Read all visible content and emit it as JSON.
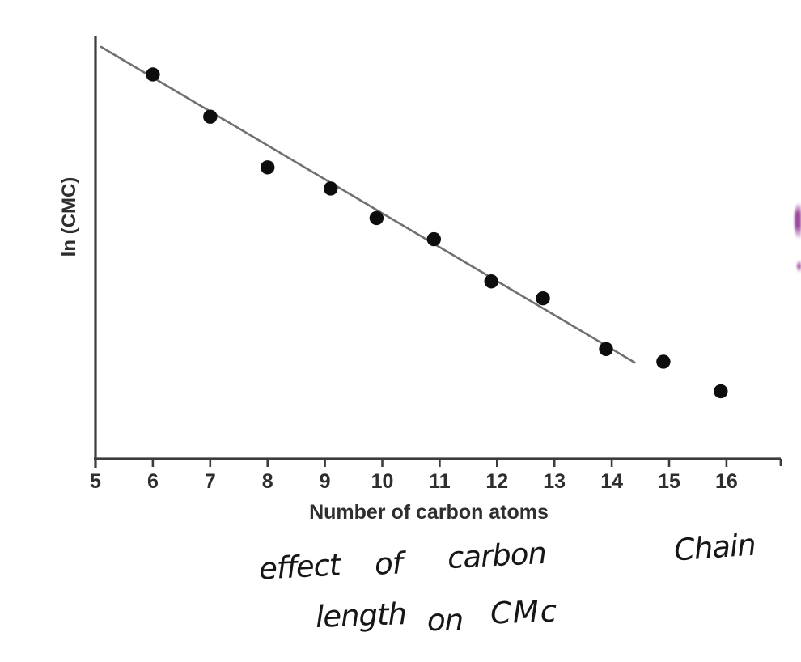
{
  "page": {
    "background": "#ffffff"
  },
  "chart_data": {
    "type": "scatter",
    "title": "",
    "xlabel": "Number of carbon atoms",
    "ylabel": "ln (CMC)",
    "x_tick_labels": [
      5,
      6,
      7,
      8,
      9,
      10,
      11,
      12,
      13,
      14,
      15,
      16
    ],
    "xlim": [
      5,
      16.95
    ],
    "ylim": [
      0,
      10
    ],
    "y_ticks_shown": false,
    "grid": false,
    "legend": false,
    "points": [
      {
        "x": 6.0,
        "y": 9.1
      },
      {
        "x": 7.0,
        "y": 8.1
      },
      {
        "x": 8.0,
        "y": 6.9
      },
      {
        "x": 9.1,
        "y": 6.4
      },
      {
        "x": 9.9,
        "y": 5.7
      },
      {
        "x": 10.9,
        "y": 5.2
      },
      {
        "x": 11.9,
        "y": 4.2
      },
      {
        "x": 12.8,
        "y": 3.8
      },
      {
        "x": 13.9,
        "y": 2.6
      },
      {
        "x": 14.9,
        "y": 2.3
      },
      {
        "x": 15.9,
        "y": 1.6
      }
    ],
    "trendline": {
      "x1": 5.1,
      "y1": 9.75,
      "x2": 14.4,
      "y2": 2.28
    },
    "colors": {
      "point": "#0d0d0d",
      "trend_line": "#707070",
      "axis": "#3d3d3d",
      "tick_text": "#2e2e2e"
    }
  },
  "caption": {
    "line1_words": [
      "effect",
      "of",
      "carbon",
      "Chain"
    ],
    "line2_words": [
      "length",
      "on",
      "CMc"
    ],
    "color": "#161616"
  },
  "artifact": {
    "name": "purple-sliver",
    "color": "#9c4a9c"
  }
}
